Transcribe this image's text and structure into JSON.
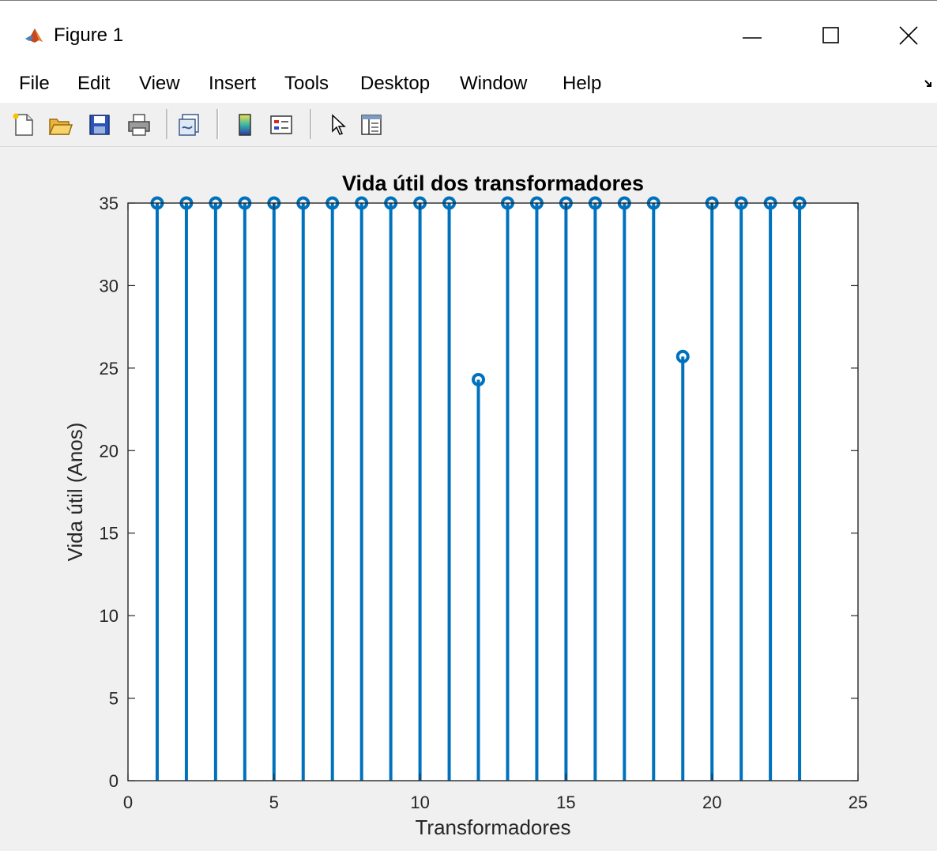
{
  "window": {
    "title": "Figure 1",
    "controls": [
      "minimize",
      "maximize",
      "close"
    ]
  },
  "menu": [
    "File",
    "Edit",
    "View",
    "Insert",
    "Tools",
    "Desktop",
    "Window",
    "Help"
  ],
  "toolbar": [
    "new-figure-icon",
    "open-file-icon",
    "save-icon",
    "print-icon",
    "link-plot-icon",
    "insert-colorbar-icon",
    "insert-legend-icon",
    "edit-plot-icon",
    "property-inspector-icon"
  ],
  "colors": {
    "stem": "#0072bd",
    "axes": "#262626",
    "window_bg": "#f0f0f0"
  },
  "chart_data": {
    "type": "stem",
    "title": "Vida útil dos transformadores",
    "xlabel": "Transformadores",
    "ylabel": "Vida útil (Anos)",
    "xlim": [
      0,
      25
    ],
    "ylim": [
      0,
      35
    ],
    "xticks": [
      0,
      5,
      10,
      15,
      20,
      25
    ],
    "yticks": [
      0,
      5,
      10,
      15,
      20,
      25,
      30,
      35
    ],
    "grid": false,
    "x": [
      1,
      2,
      3,
      4,
      5,
      6,
      7,
      8,
      9,
      10,
      11,
      12,
      13,
      14,
      15,
      16,
      17,
      18,
      19,
      20,
      21,
      22,
      23
    ],
    "values": [
      35,
      35,
      35,
      35,
      35,
      35,
      35,
      35,
      35,
      35,
      35,
      24.3,
      35,
      35,
      35,
      35,
      35,
      35,
      25.7,
      35,
      35,
      35,
      35
    ]
  }
}
